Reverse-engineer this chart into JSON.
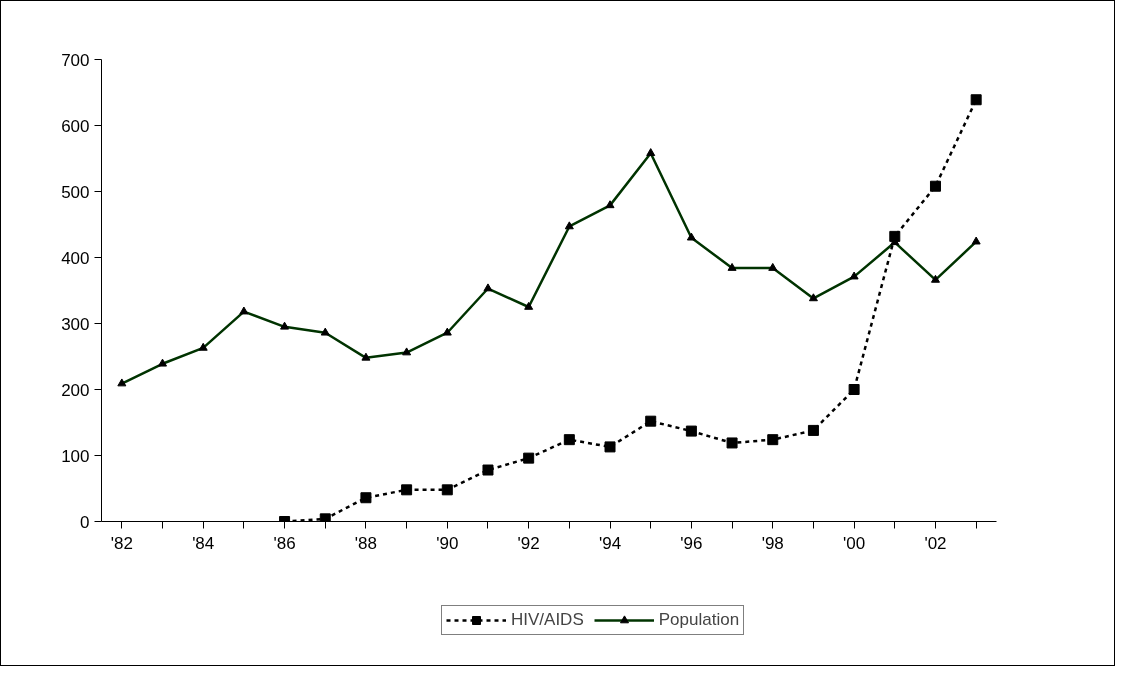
{
  "chart_data": {
    "type": "line",
    "categories": [
      "'82",
      null,
      "'84",
      null,
      "'86",
      null,
      "'88",
      null,
      "'90",
      null,
      "'92",
      null,
      "'94",
      null,
      "'96",
      null,
      "'98",
      null,
      "'00",
      null,
      "'02",
      null
    ],
    "series": [
      {
        "name": "HIV/AIDS",
        "color": "#000000",
        "marker": "square",
        "line_style": "dotted",
        "values": [
          null,
          null,
          null,
          null,
          0,
          4,
          36,
          48,
          48,
          78,
          96,
          124,
          113,
          152,
          137,
          119,
          124,
          138,
          200,
          432,
          508,
          639
        ]
      },
      {
        "name": "Population",
        "color": "#003300",
        "marker": "triangle",
        "line_style": "solid",
        "values": [
          209,
          239,
          263,
          318,
          295,
          286,
          248,
          256,
          286,
          353,
          325,
          447,
          479,
          558,
          430,
          384,
          384,
          338,
          371,
          423,
          366,
          424
        ]
      }
    ],
    "ylim": [
      0,
      700
    ],
    "yticks": [
      0,
      100,
      200,
      300,
      400,
      500,
      600,
      700
    ],
    "grid": false,
    "legend": "bottom"
  }
}
